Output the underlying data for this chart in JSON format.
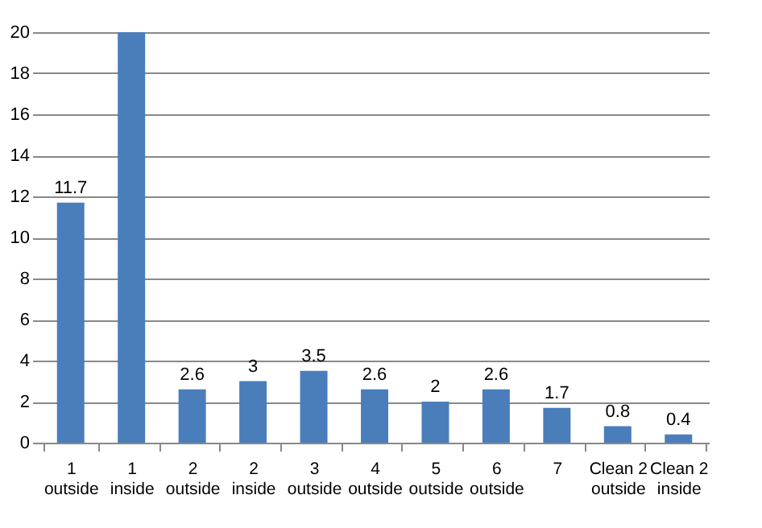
{
  "chart_data": {
    "type": "bar",
    "categories": [
      "1\noutside",
      "1\ninside",
      "2\noutside",
      "2\ninside",
      "3\noutside",
      "4\noutside",
      "5\noutside",
      "6\noutside",
      "7",
      "Clean 2\noutside",
      "Clean 2\ninside"
    ],
    "values": [
      11.7,
      20,
      2.6,
      3,
      3.5,
      2.6,
      2,
      2.6,
      1.7,
      0.8,
      0.4
    ],
    "value_labels": [
      "11.7",
      null,
      "2.6",
      "3",
      "3.5",
      "2.6",
      "2",
      "2.6",
      "1.7",
      "0.8",
      "0.4"
    ],
    "color": "#4a7ebb",
    "ylim": [
      0,
      20
    ],
    "yticks": [
      0,
      2,
      4,
      6,
      8,
      10,
      12,
      14,
      16,
      18,
      20
    ],
    "grid": "y"
  }
}
